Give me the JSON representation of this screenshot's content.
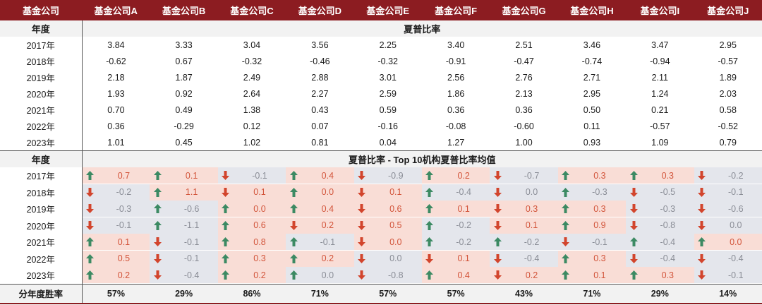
{
  "header": {
    "corner": "基金公司",
    "funds": [
      "基金公司A",
      "基金公司B",
      "基金公司C",
      "基金公司D",
      "基金公司E",
      "基金公司F",
      "基金公司G",
      "基金公司H",
      "基金公司I",
      "基金公司J"
    ]
  },
  "section1": {
    "year_label": "年度",
    "title": "夏普比率",
    "rows": [
      {
        "year": "2017年",
        "values": [
          "3.84",
          "3.33",
          "3.04",
          "3.56",
          "2.25",
          "3.40",
          "2.51",
          "3.46",
          "3.47",
          "2.95"
        ]
      },
      {
        "year": "2018年",
        "values": [
          "-0.62",
          "0.67",
          "-0.32",
          "-0.46",
          "-0.32",
          "-0.91",
          "-0.47",
          "-0.74",
          "-0.94",
          "-0.57"
        ]
      },
      {
        "year": "2019年",
        "values": [
          "2.18",
          "1.87",
          "2.49",
          "2.88",
          "3.01",
          "2.56",
          "2.76",
          "2.71",
          "2.11",
          "1.89"
        ]
      },
      {
        "year": "2020年",
        "values": [
          "1.93",
          "0.92",
          "2.64",
          "2.27",
          "2.59",
          "1.86",
          "2.13",
          "2.95",
          "1.24",
          "2.03"
        ]
      },
      {
        "year": "2021年",
        "values": [
          "0.70",
          "0.49",
          "1.38",
          "0.43",
          "0.59",
          "0.36",
          "0.36",
          "0.50",
          "0.21",
          "0.58"
        ]
      },
      {
        "year": "2022年",
        "values": [
          "0.36",
          "-0.29",
          "0.12",
          "0.07",
          "-0.16",
          "-0.08",
          "-0.60",
          "0.11",
          "-0.57",
          "-0.52"
        ]
      },
      {
        "year": "2023年",
        "values": [
          "1.01",
          "0.45",
          "1.02",
          "0.81",
          "0.04",
          "1.27",
          "1.00",
          "0.93",
          "1.09",
          "0.79"
        ]
      }
    ]
  },
  "section2": {
    "year_label": "年度",
    "title": "夏普比率 - Top 10机构夏普比率均值",
    "rows": [
      {
        "year": "2017年",
        "cells": [
          {
            "v": "0.7",
            "dir": "up",
            "tone": "pos"
          },
          {
            "v": "0.1",
            "dir": "up",
            "tone": "pos"
          },
          {
            "v": "-0.1",
            "dir": "down",
            "tone": "neg"
          },
          {
            "v": "0.4",
            "dir": "up",
            "tone": "pos"
          },
          {
            "v": "-0.9",
            "dir": "down",
            "tone": "neg"
          },
          {
            "v": "0.2",
            "dir": "up",
            "tone": "pos"
          },
          {
            "v": "-0.7",
            "dir": "down",
            "tone": "neg"
          },
          {
            "v": "0.3",
            "dir": "up",
            "tone": "pos"
          },
          {
            "v": "0.3",
            "dir": "up",
            "tone": "pos"
          },
          {
            "v": "-0.2",
            "dir": "down",
            "tone": "neg"
          }
        ]
      },
      {
        "year": "2018年",
        "cells": [
          {
            "v": "-0.2",
            "dir": "down",
            "tone": "neg"
          },
          {
            "v": "1.1",
            "dir": "up",
            "tone": "pos"
          },
          {
            "v": "0.1",
            "dir": "down",
            "tone": "pos"
          },
          {
            "v": "0.0",
            "dir": "up",
            "tone": "pos"
          },
          {
            "v": "0.1",
            "dir": "down",
            "tone": "pos"
          },
          {
            "v": "-0.4",
            "dir": "up",
            "tone": "neg"
          },
          {
            "v": "0.0",
            "dir": "down",
            "tone": "neg"
          },
          {
            "v": "-0.3",
            "dir": "up",
            "tone": "neg"
          },
          {
            "v": "-0.5",
            "dir": "down",
            "tone": "neg"
          },
          {
            "v": "-0.1",
            "dir": "down",
            "tone": "neg"
          }
        ]
      },
      {
        "year": "2019年",
        "cells": [
          {
            "v": "-0.3",
            "dir": "down",
            "tone": "neg"
          },
          {
            "v": "-0.6",
            "dir": "up",
            "tone": "neg"
          },
          {
            "v": "0.0",
            "dir": "up",
            "tone": "pos"
          },
          {
            "v": "0.4",
            "dir": "up",
            "tone": "pos"
          },
          {
            "v": "0.6",
            "dir": "down",
            "tone": "pos"
          },
          {
            "v": "0.1",
            "dir": "up",
            "tone": "pos"
          },
          {
            "v": "0.3",
            "dir": "down",
            "tone": "pos"
          },
          {
            "v": "0.3",
            "dir": "up",
            "tone": "pos"
          },
          {
            "v": "-0.3",
            "dir": "down",
            "tone": "neg"
          },
          {
            "v": "-0.6",
            "dir": "down",
            "tone": "neg"
          }
        ]
      },
      {
        "year": "2020年",
        "cells": [
          {
            "v": "-0.1",
            "dir": "down",
            "tone": "neg"
          },
          {
            "v": "-1.1",
            "dir": "up",
            "tone": "neg"
          },
          {
            "v": "0.6",
            "dir": "up",
            "tone": "pos"
          },
          {
            "v": "0.2",
            "dir": "down",
            "tone": "pos"
          },
          {
            "v": "0.5",
            "dir": "down",
            "tone": "pos"
          },
          {
            "v": "-0.2",
            "dir": "up",
            "tone": "neg"
          },
          {
            "v": "0.1",
            "dir": "down",
            "tone": "pos"
          },
          {
            "v": "0.9",
            "dir": "up",
            "tone": "pos"
          },
          {
            "v": "-0.8",
            "dir": "down",
            "tone": "neg"
          },
          {
            "v": "0.0",
            "dir": "down",
            "tone": "neg"
          }
        ]
      },
      {
        "year": "2021年",
        "cells": [
          {
            "v": "0.1",
            "dir": "up",
            "tone": "pos"
          },
          {
            "v": "-0.1",
            "dir": "down",
            "tone": "neg"
          },
          {
            "v": "0.8",
            "dir": "up",
            "tone": "pos"
          },
          {
            "v": "-0.1",
            "dir": "up",
            "tone": "neg"
          },
          {
            "v": "0.0",
            "dir": "down",
            "tone": "pos"
          },
          {
            "v": "-0.2",
            "dir": "up",
            "tone": "neg"
          },
          {
            "v": "-0.2",
            "dir": "up",
            "tone": "neg"
          },
          {
            "v": "-0.1",
            "dir": "down",
            "tone": "neg"
          },
          {
            "v": "-0.4",
            "dir": "up",
            "tone": "neg"
          },
          {
            "v": "0.0",
            "dir": "up",
            "tone": "pos"
          }
        ]
      },
      {
        "year": "2022年",
        "cells": [
          {
            "v": "0.5",
            "dir": "up",
            "tone": "pos"
          },
          {
            "v": "-0.1",
            "dir": "down",
            "tone": "neg"
          },
          {
            "v": "0.3",
            "dir": "up",
            "tone": "pos"
          },
          {
            "v": "0.2",
            "dir": "up",
            "tone": "pos"
          },
          {
            "v": "0.0",
            "dir": "down",
            "tone": "neg"
          },
          {
            "v": "0.1",
            "dir": "down",
            "tone": "pos"
          },
          {
            "v": "-0.4",
            "dir": "down",
            "tone": "neg"
          },
          {
            "v": "0.3",
            "dir": "up",
            "tone": "pos"
          },
          {
            "v": "-0.4",
            "dir": "down",
            "tone": "neg"
          },
          {
            "v": "-0.4",
            "dir": "down",
            "tone": "neg"
          }
        ]
      },
      {
        "year": "2023年",
        "cells": [
          {
            "v": "0.2",
            "dir": "up",
            "tone": "pos"
          },
          {
            "v": "-0.4",
            "dir": "down",
            "tone": "neg"
          },
          {
            "v": "0.2",
            "dir": "up",
            "tone": "pos"
          },
          {
            "v": "0.0",
            "dir": "up",
            "tone": "neg"
          },
          {
            "v": "-0.8",
            "dir": "down",
            "tone": "neg"
          },
          {
            "v": "0.4",
            "dir": "up",
            "tone": "pos"
          },
          {
            "v": "0.2",
            "dir": "down",
            "tone": "pos"
          },
          {
            "v": "0.1",
            "dir": "up",
            "tone": "pos"
          },
          {
            "v": "0.3",
            "dir": "up",
            "tone": "pos"
          },
          {
            "v": "-0.1",
            "dir": "down",
            "tone": "neg"
          }
        ]
      }
    ]
  },
  "footer": {
    "label": "分年度胜率",
    "values": [
      "57%",
      "29%",
      "86%",
      "71%",
      "57%",
      "57%",
      "43%",
      "71%",
      "29%",
      "14%"
    ]
  },
  "colors": {
    "header_bg": "#8c1c21",
    "up_arrow": "#3c8a63",
    "down_arrow": "#d2452d",
    "pos_bg": "#f9ddd6",
    "neg_bg": "#e4e6ec"
  },
  "icons": {
    "up": "arrow-up-icon",
    "down": "arrow-down-icon"
  }
}
